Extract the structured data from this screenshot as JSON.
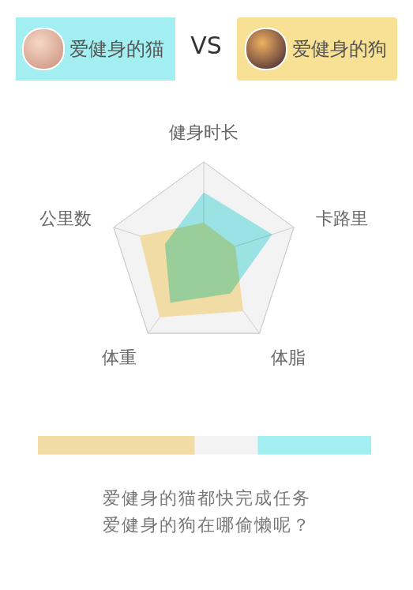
{
  "header": {
    "left": "爱健身的猫",
    "vs": "VS",
    "right": "爱健身的狗"
  },
  "chart_data": [
    {
      "type": "radar",
      "categories": [
        "健身时长",
        "卡路里",
        "体脂",
        "体重",
        "公里数"
      ],
      "series": [
        {
          "name": "爱健身的狗",
          "color": "#f0dca4",
          "values": [
            36,
            35,
            71,
            79,
            71
          ]
        },
        {
          "name": "爱健身的猫",
          "color": "#a3eef0",
          "values": [
            68,
            76,
            48,
            60,
            43
          ]
        }
      ],
      "ylim": [
        0,
        100
      ],
      "grid": true,
      "tick_labels": "x"
    },
    {
      "type": "bar",
      "orientation": "horizontal",
      "series": [
        {
          "name": "爱健身的狗",
          "color": "#f0dca4",
          "values": [
            47
          ]
        },
        {
          "name": "爱健身的猫",
          "color": "#a3eef0",
          "values": [
            34
          ]
        }
      ],
      "xlim": [
        0,
        100
      ],
      "tick_labels": false
    }
  ],
  "footer": [
    "爱健身的猫都快完成任务",
    "爱健身的狗在哪偷懒呢？"
  ]
}
